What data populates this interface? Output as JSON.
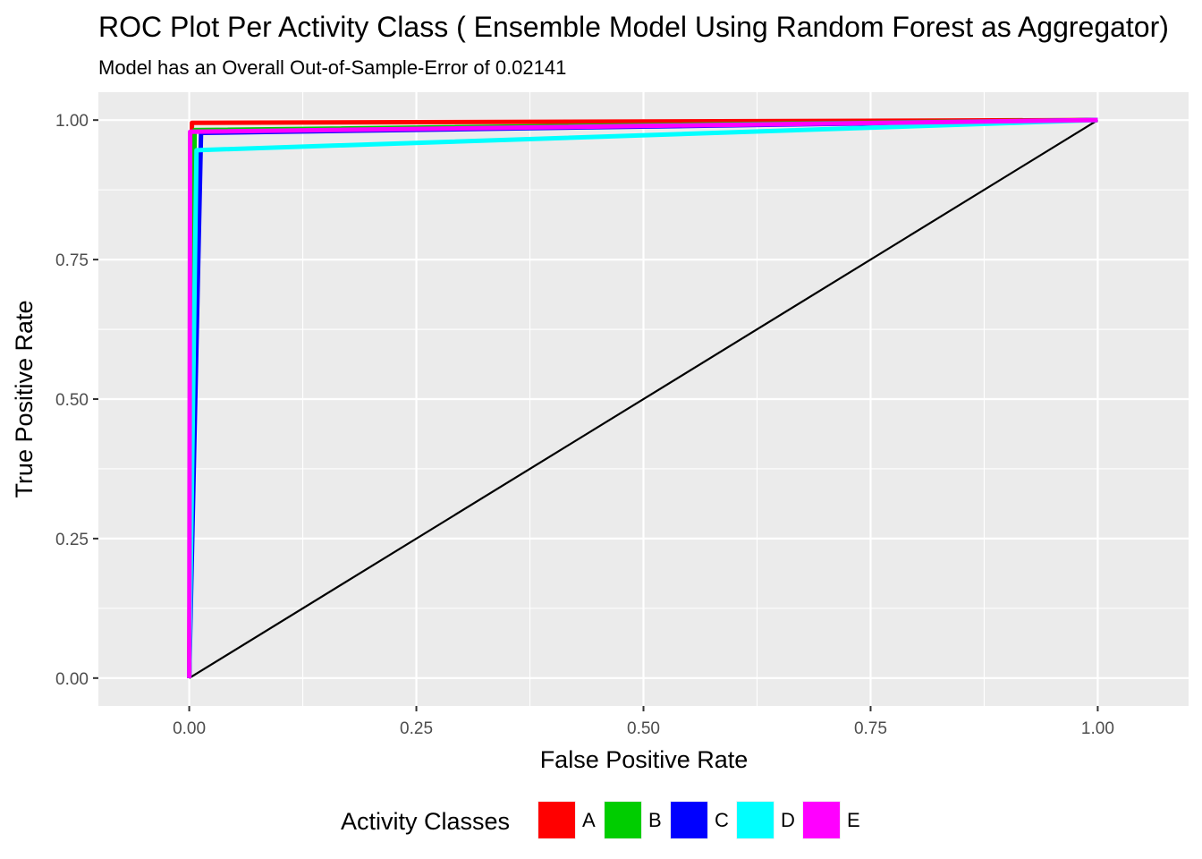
{
  "chart_data": {
    "type": "line",
    "title": "ROC Plot Per Activity Class ( Ensemble Model Using Random Forest as Aggregator)",
    "subtitle": "Model has an Overall Out-of-Sample-Error of  0.02141",
    "xlabel": "False Positive Rate",
    "ylabel": "True Positive Rate",
    "xlim": [
      -0.1,
      1.1
    ],
    "ylim": [
      -0.05,
      1.05
    ],
    "x_ticks": [
      "0.00",
      "0.25",
      "0.50",
      "0.75",
      "1.00"
    ],
    "y_ticks": [
      "0.00",
      "0.25",
      "0.50",
      "0.75",
      "1.00"
    ],
    "grid": true,
    "legend": {
      "title": "Activity Classes",
      "position": "bottom"
    },
    "reference_line": {
      "x": [
        0,
        1
      ],
      "y": [
        0,
        1
      ],
      "color": "#000000"
    },
    "series": [
      {
        "name": "A",
        "color": "#ff0000",
        "x": [
          0,
          0.003,
          1
        ],
        "y": [
          0,
          0.995,
          1
        ]
      },
      {
        "name": "B",
        "color": "#00cd00",
        "x": [
          0,
          0.006,
          1
        ],
        "y": [
          0,
          0.982,
          1
        ]
      },
      {
        "name": "C",
        "color": "#0000ff",
        "x": [
          0,
          0.013,
          1
        ],
        "y": [
          0,
          0.977,
          1
        ]
      },
      {
        "name": "D",
        "color": "#00ffff",
        "x": [
          0,
          0.008,
          1
        ],
        "y": [
          0,
          0.946,
          1
        ]
      },
      {
        "name": "E",
        "color": "#ff00ff",
        "x": [
          0,
          0.001,
          1
        ],
        "y": [
          0,
          0.979,
          1
        ]
      }
    ]
  }
}
